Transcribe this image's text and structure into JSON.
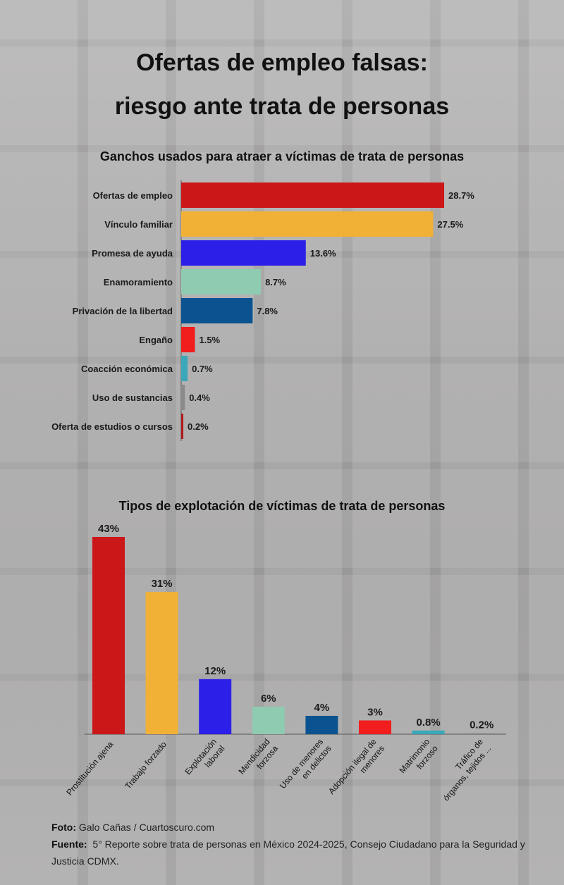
{
  "title_line1": "Ofertas de empleo falsas:",
  "title_line2": "riesgo ante trata de personas",
  "chart_data": [
    {
      "type": "bar",
      "orientation": "horizontal",
      "title": "Ganchos usados para atraer a víctimas de trata de personas",
      "categories": [
        "Ofertas de empleo",
        "Vínculo familiar",
        "Promesa de ayuda",
        "Enamoramiento",
        "Privación de la libertad",
        "Engaño",
        "Coacción económica",
        "Uso de sustancias",
        "Oferta de estudios o cursos"
      ],
      "values": [
        28.7,
        27.5,
        13.6,
        8.7,
        7.8,
        1.5,
        0.7,
        0.4,
        0.2
      ],
      "labels": [
        "28.7%",
        "27.5%",
        "13.6%",
        "8.7%",
        "7.8%",
        "1.5%",
        "0.7%",
        "0.4%",
        "0.2%"
      ],
      "colors": [
        "#cc1719",
        "#f0b136",
        "#2b1fe8",
        "#8fcbb0",
        "#0b5390",
        "#f21d1d",
        "#3aa8b8",
        "#8a8a8a",
        "#b0181c"
      ],
      "grid": false
    },
    {
      "type": "bar",
      "orientation": "vertical",
      "title": "Tipos de explotación de víctimas de trata de personas",
      "categories": [
        [
          "Prostitución ajena"
        ],
        [
          "Trabajo forzado"
        ],
        [
          "Explotación",
          "laboral"
        ],
        [
          "Mendicidad",
          "forzosa"
        ],
        [
          "Uso de menores",
          "en delictos"
        ],
        [
          "Adopción ilegal de",
          "menores"
        ],
        [
          "Matrimonio",
          "forzoso"
        ],
        [
          "Tráfico de",
          "órganos, tejidos ..."
        ]
      ],
      "values": [
        43,
        31,
        12,
        6,
        4,
        3,
        0.8,
        0.2
      ],
      "labels": [
        "43%",
        "31%",
        "12%",
        "6%",
        "4%",
        "3%",
        "0.8%",
        "0.2%"
      ],
      "colors": [
        "#cc1719",
        "#f0b136",
        "#2b1fe8",
        "#8fcbb0",
        "#0b5390",
        "#f21d1d",
        "#3aa8b8",
        "#8a8a8a"
      ],
      "grid": false
    }
  ],
  "footer": {
    "photo_label": "Foto:",
    "photo_credit": "Galo Cañas / Cuartoscuro.com",
    "source_label": "Fuente:",
    "source_text": "5° Reporte sobre trata de personas en México 2024-2025, Consejo Ciudadano para la Seguridad y Justicia CDMX."
  }
}
